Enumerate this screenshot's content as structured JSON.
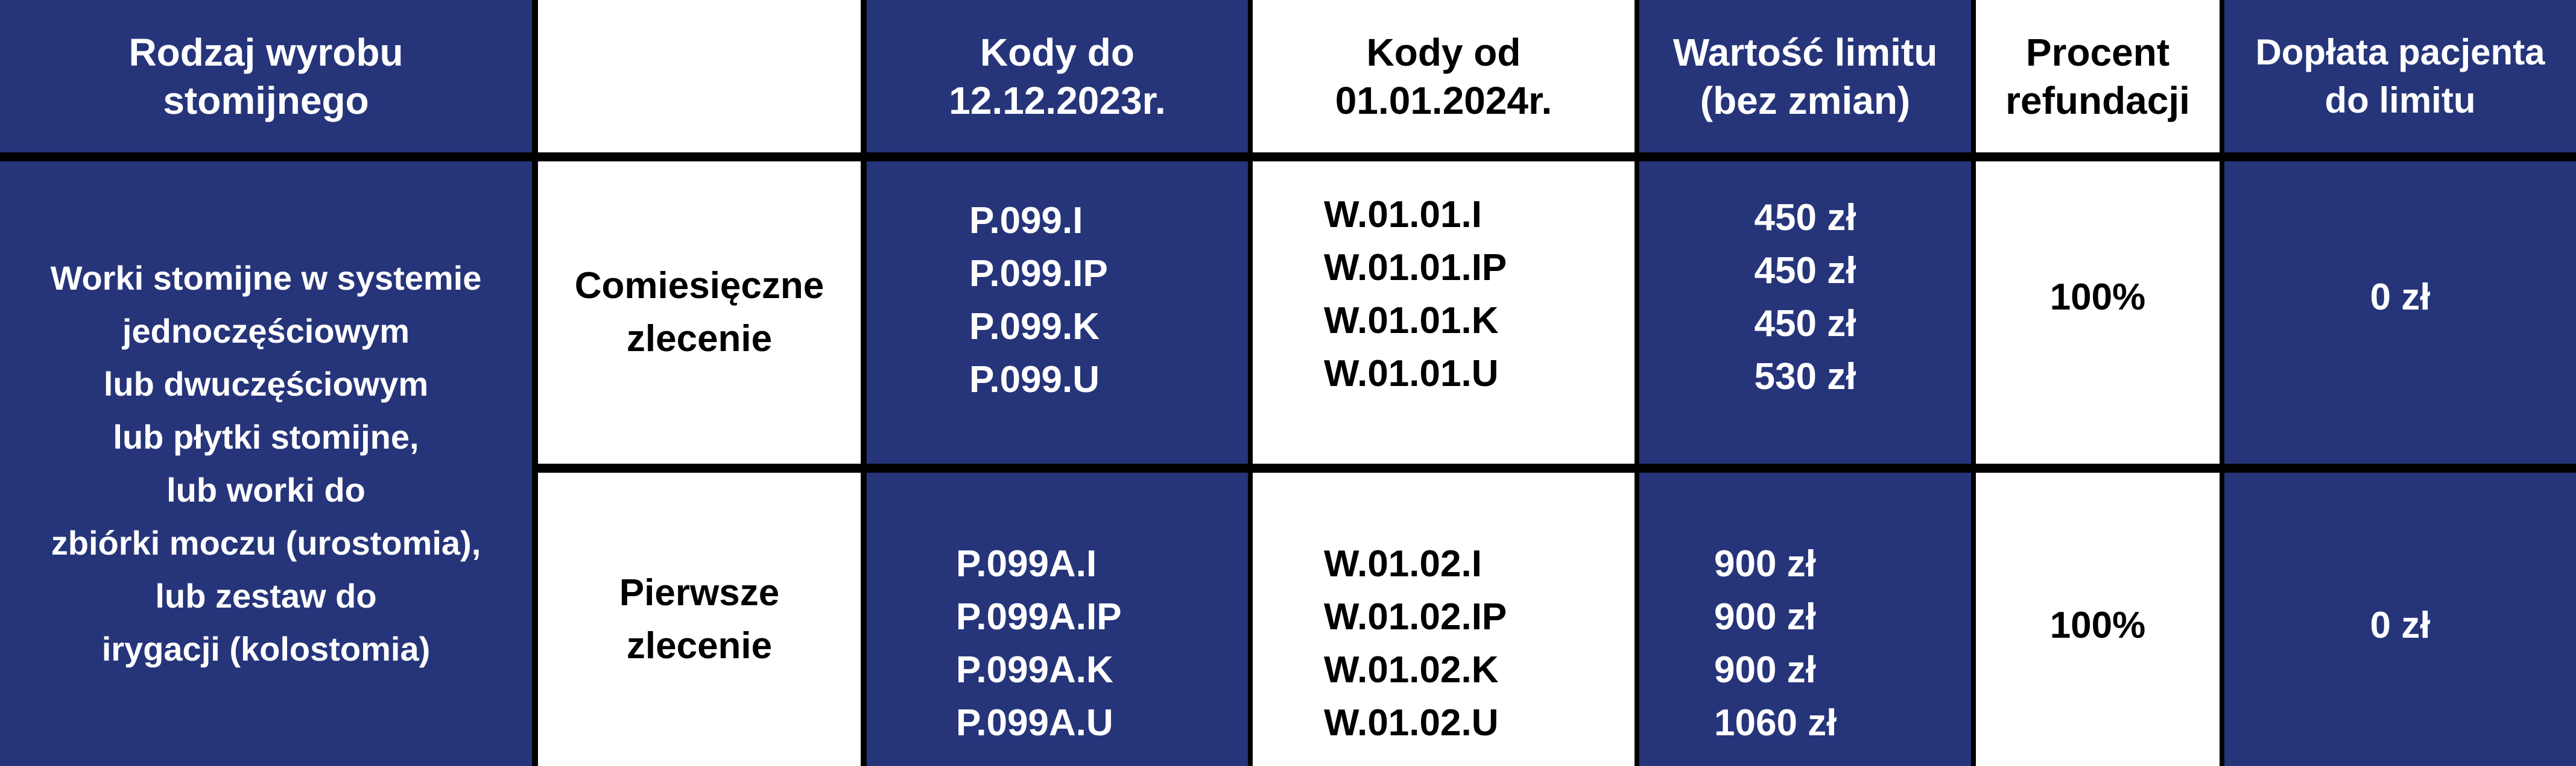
{
  "colors": {
    "blue": "#26357a",
    "white": "#ffffff",
    "border": "#000000"
  },
  "header": {
    "product_type": [
      "Rodzaj wyrobu",
      "stomijnego"
    ],
    "empty": "",
    "codes_old": [
      "Kody do",
      "12.12.2023r."
    ],
    "codes_new": [
      "Kody od",
      "01.01.2024r."
    ],
    "limit_value": [
      "Wartość limitu",
      "(bez zmian)"
    ],
    "refund_percent": [
      "Procent",
      "refundacji"
    ],
    "patient_copay": [
      "Dopłata pacjenta",
      "do limitu"
    ]
  },
  "product_description": [
    "Worki stomijne w systemie",
    "jednoczęściowym",
    "lub dwuczęściowym",
    "lub płytki stomijne,",
    "lub worki do",
    "zbiórki moczu (urostomia),",
    "lub zestaw do",
    "irygacji (kolostomia)"
  ],
  "rows": [
    {
      "order_type": [
        "Comiesięczne",
        "zlecenie"
      ],
      "codes_old": [
        "P.099.I",
        "P.099.IP",
        "P.099.K",
        "P.099.U"
      ],
      "codes_new": [
        "W.01.01.I",
        "W.01.01.IP",
        "W.01.01.K",
        "W.01.01.U"
      ],
      "limits": [
        "450 zł",
        "450 zł",
        "450 zł",
        "530 zł"
      ],
      "refund_percent": "100%",
      "patient_copay": "0 zł"
    },
    {
      "order_type": [
        "Pierwsze",
        "zlecenie"
      ],
      "codes_old": [
        "P.099A.I",
        "P.099A.IP",
        "P.099A.K",
        "P.099A.U"
      ],
      "codes_new": [
        "W.01.02.I",
        "W.01.02.IP",
        "W.01.02.K",
        "W.01.02.U"
      ],
      "limits": [
        "900 zł",
        "900 zł",
        "900 zł",
        "1060 zł"
      ],
      "refund_percent": "100%",
      "patient_copay": "0 zł"
    }
  ]
}
